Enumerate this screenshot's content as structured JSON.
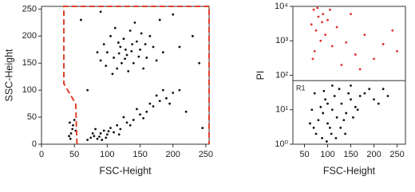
{
  "chart_data": [
    {
      "type": "scatter",
      "xlabel": "FSC-Height",
      "ylabel": "SSC-Height",
      "xlim": [
        0,
        255
      ],
      "ylim": [
        0,
        255
      ],
      "xticks": [
        0,
        50,
        100,
        150,
        200,
        250
      ],
      "yticks": [
        0,
        50,
        100,
        150,
        200,
        250
      ],
      "gate": {
        "color": "#e0412c",
        "x": [
          54,
          52,
          34,
          34,
          255,
          255
        ],
        "y": [
          0,
          75,
          112,
          255,
          255,
          0
        ]
      },
      "series": [
        {
          "color": "#111111",
          "x": [
            130,
            120,
            140,
            110,
            150,
            125,
            100,
            160,
            135,
            115,
            145,
            170,
            105,
            90,
            155,
            128,
            138,
            118,
            148,
            122,
            95,
            175,
            165,
            112,
            142,
            132,
            85,
            185,
            108,
            152,
            127,
            137,
            117,
            158,
            98,
            80,
            90,
            100,
            85,
            95,
            110,
            75,
            105,
            120,
            70,
            88,
            98,
            115,
            130,
            140,
            150,
            160,
            170,
            180,
            190,
            200,
            210,
            125,
            145,
            165,
            135,
            155,
            78,
            92,
            102,
            82,
            118,
            185,
            175,
            195,
            45,
            48,
            42,
            50,
            47,
            44,
            52,
            43,
            200,
            230,
            60,
            220,
            240,
            70,
            210,
            245,
            180,
            90
          ],
          "y": [
            165,
            180,
            150,
            160,
            175,
            195,
            170,
            160,
            210,
            140,
            190,
            180,
            200,
            155,
            140,
            175,
            185,
            168,
            162,
            150,
            185,
            155,
            200,
            215,
            225,
            135,
            170,
            170,
            130,
            205,
            158,
            172,
            188,
            185,
            145,
            15,
            20,
            18,
            10,
            25,
            22,
            12,
            30,
            28,
            8,
            14,
            12,
            35,
            40,
            45,
            55,
            60,
            70,
            80,
            85,
            95,
            100,
            50,
            65,
            75,
            35,
            48,
            20,
            8,
            24,
            28,
            18,
            100,
            90,
            75,
            20,
            35,
            15,
            45,
            28,
            10,
            25,
            40,
            240,
            200,
            230,
            60,
            150,
            100,
            180,
            30,
            230,
            245
          ]
        }
      ]
    },
    {
      "type": "scatter",
      "xlabel": "FSC-Height",
      "ylabel": "PI",
      "log_y": true,
      "xlim": [
        25,
        268
      ],
      "ylim": [
        1,
        10000
      ],
      "xticks": [
        50,
        100,
        150,
        200,
        250
      ],
      "yticks": [
        {
          "value": 1,
          "label": "10⁰"
        },
        {
          "value": 10,
          "label": "10¹"
        },
        {
          "value": 100,
          "label": "10²"
        },
        {
          "value": 1000,
          "label": "10³"
        },
        {
          "value": 10000,
          "label": "10⁴"
        }
      ],
      "region": {
        "label": "R1",
        "x": [
          25,
          268
        ],
        "y": [
          1,
          70
        ]
      },
      "series": [
        {
          "color": "#111111",
          "x": [
            70,
            80,
            90,
            100,
            110,
            120,
            130,
            140,
            150,
            160,
            170,
            180,
            75,
            85,
            95,
            105,
            115,
            125,
            135,
            145,
            155,
            165,
            190,
            200,
            88,
            98,
            108,
            118,
            128,
            138,
            62,
            66,
            72,
            150,
            210,
            220,
            100,
            110,
            230,
            92
          ],
          "y": [
            3,
            5,
            8,
            4,
            10,
            6,
            15,
            8,
            20,
            12,
            25,
            30,
            2,
            12,
            20,
            3,
            25,
            40,
            5,
            30,
            6,
            10,
            40,
            20,
            1.5,
            1.2,
            2,
            1.5,
            3,
            2,
            4,
            10,
            30,
            50,
            15,
            40,
            15,
            50,
            25,
            35
          ]
        },
        {
          "color": "#e0312a",
          "x": [
            70,
            80,
            75,
            65,
            90,
            100,
            85,
            72,
            95,
            110,
            68,
            120,
            140,
            160,
            180,
            200,
            220,
            240,
            150,
            130,
            78,
            88,
            105,
            170,
            250
          ],
          "y": [
            8000,
            5000,
            2000,
            3000,
            6000,
            4000,
            1000,
            500,
            1500,
            700,
            300,
            2500,
            900,
            400,
            1500,
            300,
            800,
            2000,
            6000,
            200,
            9000,
            3500,
            8000,
            150,
            500
          ]
        }
      ]
    }
  ]
}
